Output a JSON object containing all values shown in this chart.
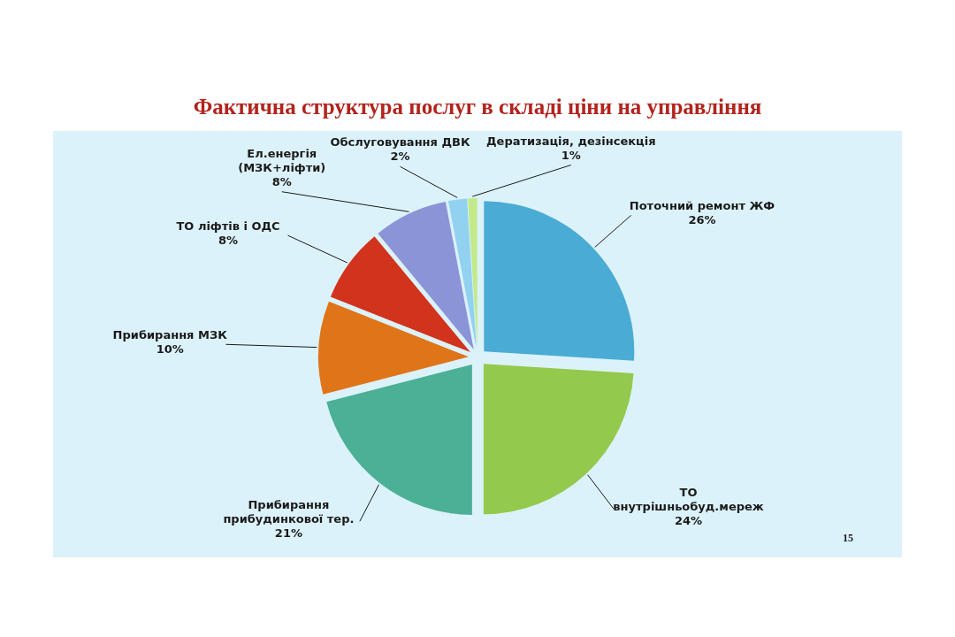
{
  "chart_data": {
    "type": "pie",
    "title": "Фактична структура послуг в складі ціни на управління",
    "categories": [
      "Поточний ремонт ЖФ",
      "ТО\nвнутрішньобуд.мереж",
      "Прибирання\nприбудинкової тер.",
      "Прибирання МЗК",
      "ТО ліфтів і ОДС",
      "Ел.енергія\n(МЗК+ліфти)",
      "Обслуговування ДВК",
      "Дератизація,  дезінсекція"
    ],
    "values": [
      26,
      24,
      21,
      10,
      8,
      8,
      2,
      1
    ],
    "colors": [
      "#4aacd4",
      "#93c94c",
      "#4bb096",
      "#e07419",
      "#d1331c",
      "#8a94d6",
      "#92d2f0",
      "#c2ea8a"
    ],
    "value_labels": [
      "26%",
      "24%",
      "21%",
      "10%",
      "8%",
      "8%",
      "2%",
      "1%"
    ],
    "annotations": [
      "15"
    ]
  }
}
